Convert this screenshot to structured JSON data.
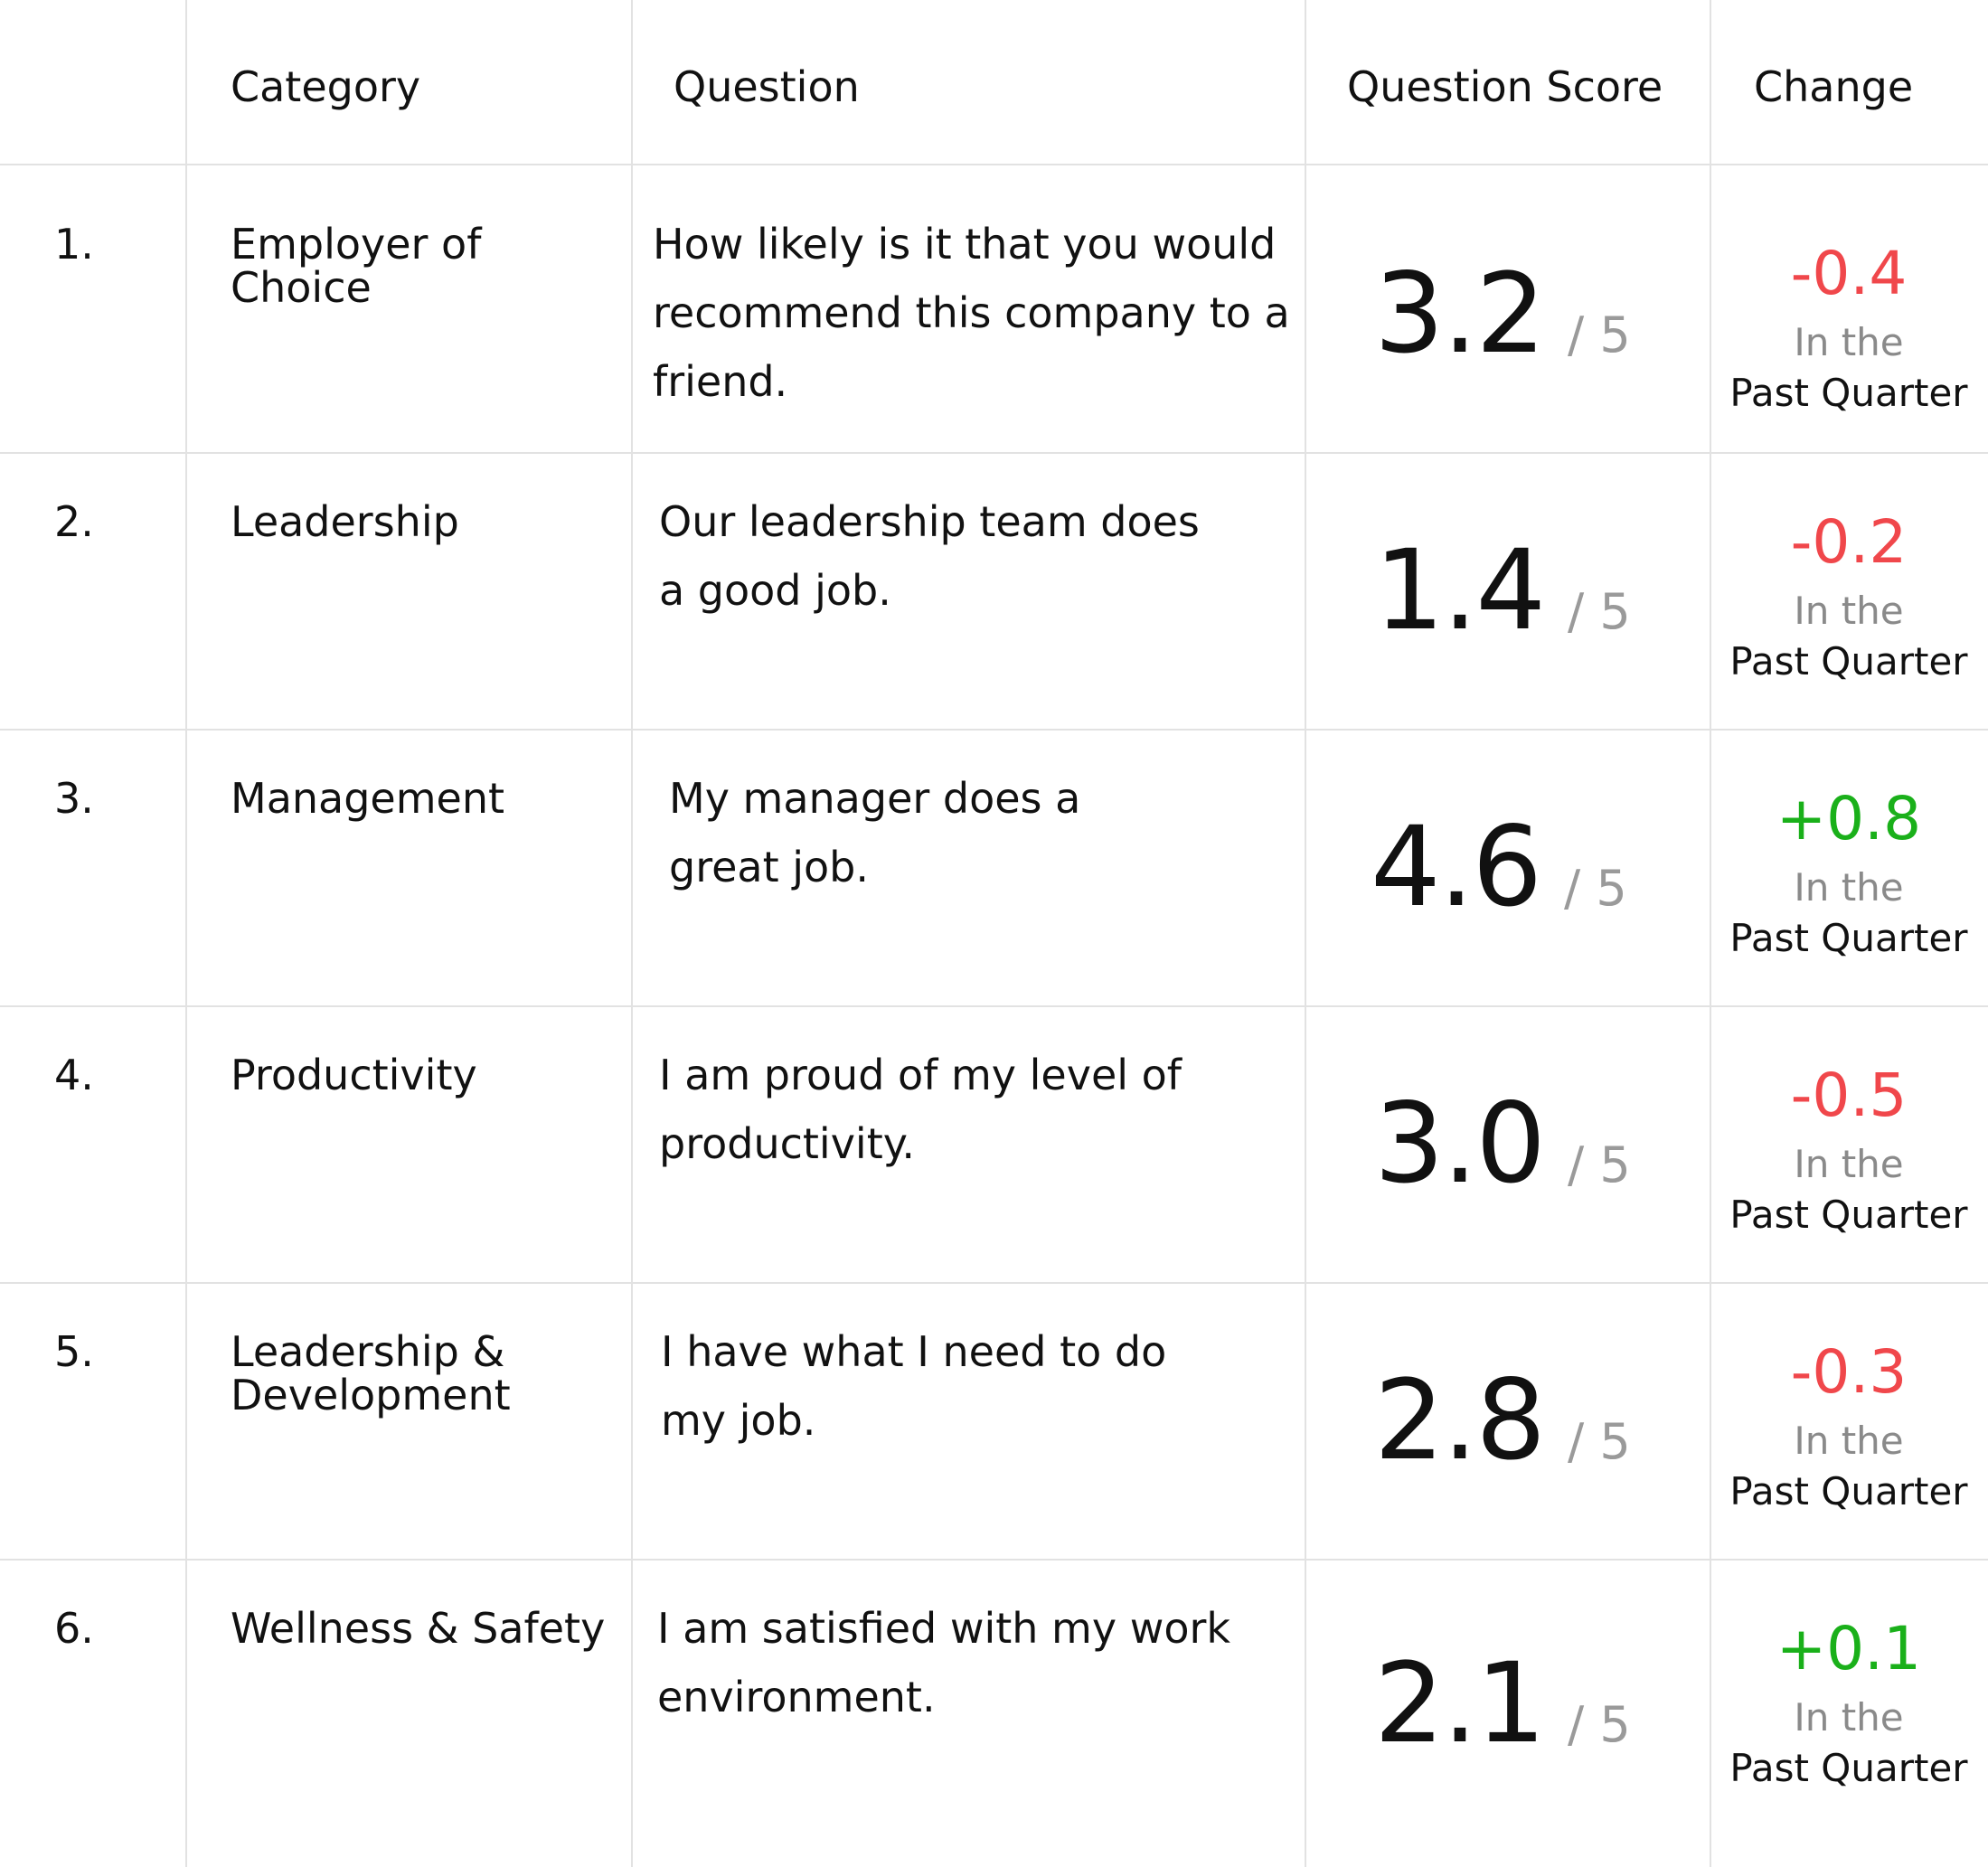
{
  "header": {
    "category": "Category",
    "question": "Question",
    "score": "Question Score",
    "change": "Change"
  },
  "rows": [
    {
      "index": "1.",
      "category": "Employer of Choice",
      "question": "How likely is it that you would recommend this company to a friend.",
      "score": "3.2",
      "out_of": "/ 5",
      "change": "-0.4",
      "change_direction": "negative",
      "period_line1": "In the",
      "period_line2": "Past Quarter"
    },
    {
      "index": "2.",
      "category": "Leadership",
      "question": "Our leadership team does a good job.",
      "score": "1.4",
      "out_of": "/ 5",
      "change": "-0.2",
      "change_direction": "negative",
      "period_line1": "In the",
      "period_line2": "Past Quarter"
    },
    {
      "index": "3.",
      "category": "Management",
      "question": "My manager does a great job.",
      "score": "4.6",
      "out_of": "/ 5",
      "change": "+0.8",
      "change_direction": "positive",
      "period_line1": "In the",
      "period_line2": "Past Quarter"
    },
    {
      "index": "4.",
      "category": "Productivity",
      "question": "I am proud of my level of productivity.",
      "score": "3.0",
      "out_of": "/ 5",
      "change": "-0.5",
      "change_direction": "negative",
      "period_line1": "In the",
      "period_line2": "Past Quarter"
    },
    {
      "index": "5.",
      "category": "Leadership & Development",
      "question": "I have what I need to do my job.",
      "score": "2.8",
      "out_of": "/ 5",
      "change": "-0.3",
      "change_direction": "negative",
      "period_line1": "In the",
      "period_line2": "Past Quarter"
    },
    {
      "index": "6.",
      "category": "Wellness & Safety",
      "question": "I am satisfied with my work environment.",
      "score": "2.1",
      "out_of": "/ 5",
      "change": "+0.1",
      "change_direction": "positive",
      "period_line1": "In the",
      "period_line2": "Past Quarter"
    }
  ],
  "colors": {
    "negative": "#f0474b",
    "positive": "#1ab01a",
    "muted": "#8a8a8a",
    "divider": "#e2e2e2"
  }
}
